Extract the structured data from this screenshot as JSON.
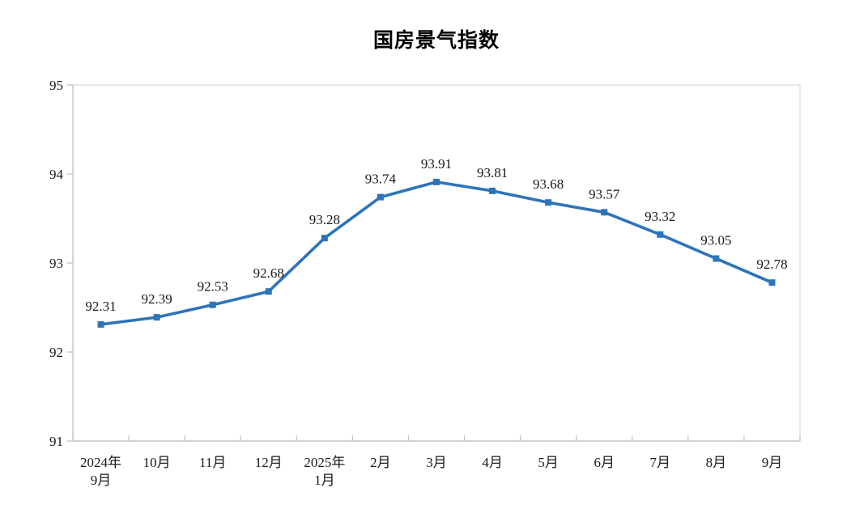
{
  "chart_data": {
    "type": "line",
    "title": "国房景气指数",
    "categories": [
      "2024年\n9月",
      "10月",
      "11月",
      "12月",
      "2025年\n1月",
      "2月",
      "3月",
      "4月",
      "5月",
      "6月",
      "7月",
      "8月",
      "9月"
    ],
    "values": [
      92.31,
      92.39,
      92.53,
      92.68,
      93.28,
      93.74,
      93.91,
      93.81,
      93.68,
      93.57,
      93.32,
      93.05,
      92.78
    ],
    "data_labels": [
      "92.31",
      "92.39",
      "92.53",
      "92.68",
      "93.28",
      "93.74",
      "93.91",
      "93.81",
      "93.68",
      "93.57",
      "93.32",
      "93.05",
      "92.78"
    ],
    "xlabel": "",
    "ylabel": "",
    "ylim": [
      91,
      95
    ],
    "yticks": [
      "95",
      "94",
      "93",
      "92",
      "91"
    ],
    "grid": false,
    "legend_position": "none",
    "marker_shape": "square",
    "colors": {
      "line": "#2E74B9",
      "marker": "#2E74B9",
      "axis": "#BFBFBF",
      "plot_border": "#D9D9D9",
      "text": "#1a1a1a",
      "background": "#FFFFFF"
    }
  }
}
